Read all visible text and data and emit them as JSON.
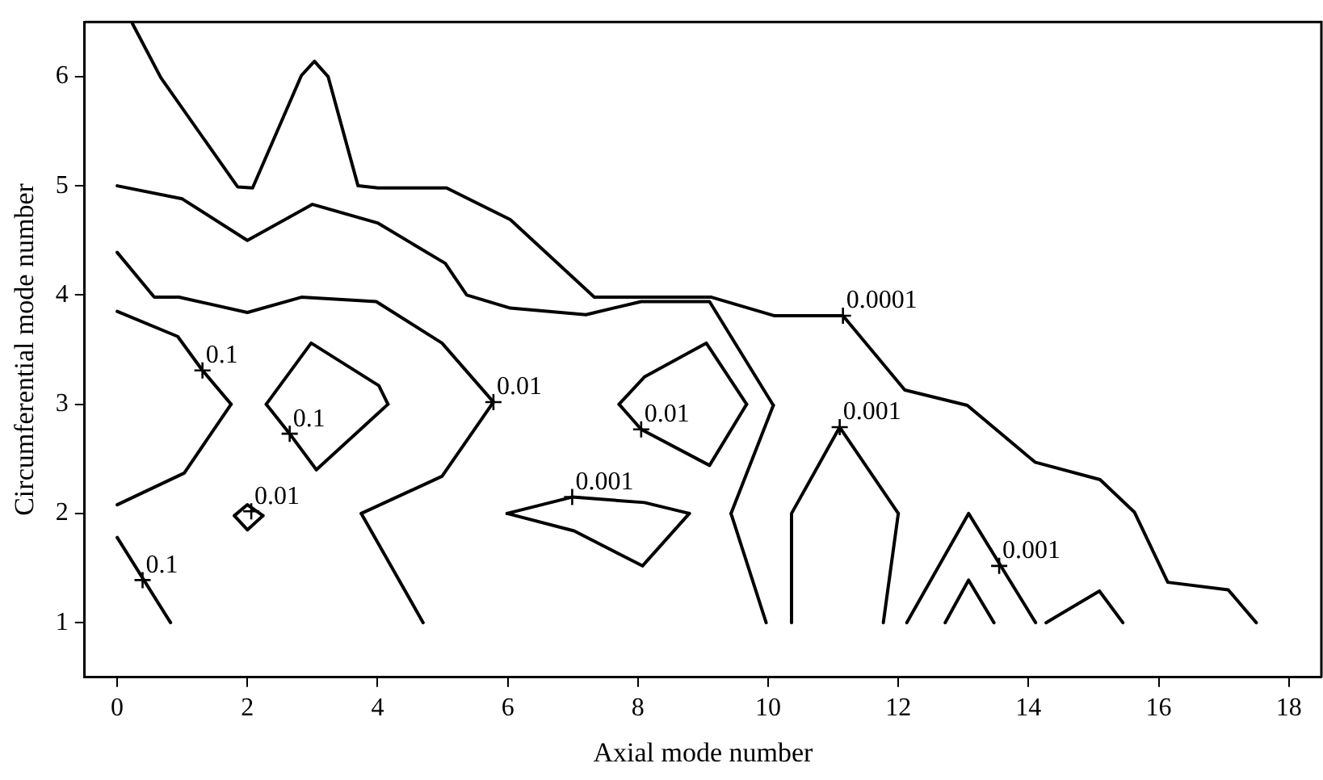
{
  "chart_data": {
    "type": "line",
    "xlabel": "Axial mode number",
    "ylabel": "Circumferential mode number",
    "xlim": [
      -0.5,
      18.5
    ],
    "ylim": [
      0.5,
      6.5
    ],
    "xticks": [
      0,
      2,
      4,
      6,
      8,
      10,
      12,
      14,
      16,
      18
    ],
    "yticks": [
      1,
      2,
      3,
      4,
      5,
      6
    ],
    "grid": false,
    "legend": false,
    "marker": "none",
    "line_style": "solid",
    "series": [
      {
        "color": "#000000",
        "x": [
          0.23,
          0.67,
          1.85,
          2.08,
          2.83,
          3.03,
          3.24,
          3.7,
          4.01,
          5.06,
          6.04,
          7.33,
          9.13,
          10.1,
          11.15,
          12.1,
          13.06,
          14.1,
          15.1,
          15.63,
          16.14,
          17.07,
          17.5
        ],
        "values": [
          6.49,
          5.99,
          4.99,
          4.98,
          6.01,
          6.14,
          6.0,
          5.0,
          4.98,
          4.98,
          4.69,
          3.98,
          3.98,
          3.81,
          3.81,
          3.13,
          2.99,
          2.47,
          2.31,
          2.01,
          1.37,
          1.3,
          1.0
        ]
      },
      {
        "color": "#000000",
        "x": [
          0,
          1.0,
          2.0,
          3.0,
          4.0,
          5.04,
          5.37,
          6.04,
          7.2,
          8.05,
          9.1,
          10.08
        ],
        "values": [
          5.0,
          4.88,
          4.5,
          4.83,
          4.66,
          4.29,
          4.0,
          3.88,
          3.82,
          3.94,
          3.94,
          2.99
        ]
      },
      {
        "color": "#000000",
        "x": [
          10.08,
          9.43
        ],
        "values": [
          2.99,
          2.0
        ]
      },
      {
        "color": "#000000",
        "x": [
          9.43,
          9.97
        ],
        "values": [
          2.0,
          1.0
        ]
      },
      {
        "color": "#000000",
        "x": [
          0,
          0.57,
          0.95,
          2.0,
          2.83,
          3.98,
          4.99,
          5.78
        ],
        "values": [
          4.39,
          3.98,
          3.98,
          3.84,
          3.98,
          3.94,
          3.56,
          3.02
        ]
      },
      {
        "color": "#000000",
        "x": [
          5.78,
          4.99,
          3.75
        ],
        "values": [
          3.02,
          2.34,
          2.0
        ]
      },
      {
        "color": "#000000",
        "x": [
          3.75,
          4.7
        ],
        "values": [
          2.0,
          1.0
        ]
      },
      {
        "color": "#000000",
        "x": [
          0,
          0.93,
          1.31,
          1.75
        ],
        "values": [
          3.85,
          3.62,
          3.31,
          3.0
        ]
      },
      {
        "color": "#000000",
        "x": [
          1.75,
          1.03,
          0
        ],
        "values": [
          3.0,
          2.37,
          2.08
        ]
      },
      {
        "color": "#000000",
        "x": [
          2.29,
          2.98,
          4.02,
          4.16
        ],
        "values": [
          3.0,
          3.56,
          3.17,
          3.0
        ]
      },
      {
        "color": "#000000",
        "x": [
          2.29,
          2.65,
          3.06,
          4.16
        ],
        "values": [
          3.0,
          2.73,
          2.4,
          3.0
        ]
      },
      {
        "color": "#000000",
        "x": [
          1.8,
          2.0,
          2.24
        ],
        "values": [
          1.98,
          2.08,
          1.98
        ]
      },
      {
        "color": "#000000",
        "x": [
          1.8,
          2.0,
          2.24
        ],
        "values": [
          1.98,
          1.85,
          1.98
        ]
      },
      {
        "color": "#000000",
        "x": [
          0,
          0.82
        ],
        "values": [
          1.78,
          1.0
        ]
      },
      {
        "color": "#000000",
        "x": [
          7.71,
          8.1,
          9.05,
          9.67
        ],
        "values": [
          3.0,
          3.25,
          3.56,
          3.0
        ]
      },
      {
        "color": "#000000",
        "x": [
          7.71,
          8.05,
          9.1,
          9.67
        ],
        "values": [
          3.0,
          2.77,
          2.44,
          3.0
        ]
      },
      {
        "color": "#000000",
        "x": [
          5.99,
          6.99,
          8.1,
          8.79
        ],
        "values": [
          2.0,
          2.15,
          2.1,
          2.0
        ]
      },
      {
        "color": "#000000",
        "x": [
          5.99,
          7.02,
          8.07,
          8.79
        ],
        "values": [
          2.0,
          1.84,
          1.52,
          2.0
        ]
      },
      {
        "color": "#000000",
        "x": [
          10.36,
          10.36,
          11.1,
          12.0
        ],
        "values": [
          1.0,
          2.0,
          2.79,
          2.0
        ]
      },
      {
        "color": "#000000",
        "x": [
          12.0,
          11.77
        ],
        "values": [
          2.0,
          1.0
        ]
      },
      {
        "color": "#000000",
        "x": [
          12.13,
          13.08,
          14.11
        ],
        "values": [
          1.0,
          2.0,
          1.0
        ]
      },
      {
        "color": "#000000",
        "x": [
          12.72,
          13.08,
          13.47
        ],
        "values": [
          1.0,
          1.39,
          1.0
        ]
      },
      {
        "color": "#000000",
        "x": [
          14.27,
          15.09,
          15.45
        ],
        "values": [
          1.0,
          1.29,
          1.0
        ]
      }
    ],
    "annotations": [
      {
        "text": "0.1",
        "x": 1.31,
        "y": 3.31
      },
      {
        "text": "0.1",
        "x": 2.65,
        "y": 2.73
      },
      {
        "text": "0.01",
        "x": 2.06,
        "y": 2.02
      },
      {
        "text": "0.1",
        "x": 0.39,
        "y": 1.39
      },
      {
        "text": "0.01",
        "x": 5.78,
        "y": 3.02
      },
      {
        "text": "0.01",
        "x": 8.05,
        "y": 2.77
      },
      {
        "text": "0.001",
        "x": 6.99,
        "y": 2.15
      },
      {
        "text": "0.0001",
        "x": 11.15,
        "y": 3.81
      },
      {
        "text": "0.001",
        "x": 11.1,
        "y": 2.79
      },
      {
        "text": "0.001",
        "x": 13.55,
        "y": 1.52
      }
    ]
  }
}
